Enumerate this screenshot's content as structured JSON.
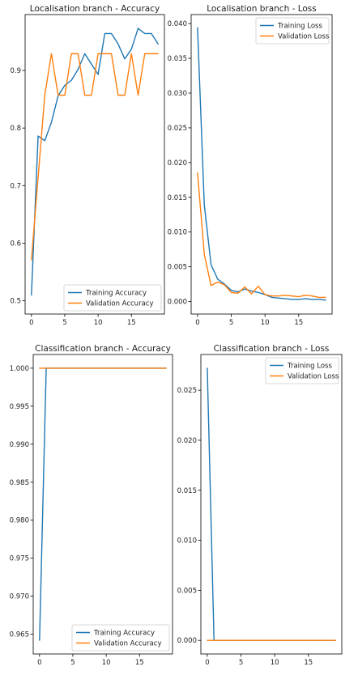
{
  "chart_data": [
    {
      "type": "line",
      "title": "Localisation branch - Accuracy",
      "xlabel": "",
      "ylabel": "",
      "xlim": [
        -0.95,
        19.95
      ],
      "ylim": [
        0.477,
        0.997
      ],
      "xticks": [
        0,
        5,
        10,
        15
      ],
      "yticks": [
        0.5,
        0.6,
        0.7,
        0.8,
        0.9
      ],
      "grid": false,
      "legend_position": "lower right",
      "x": [
        0,
        1,
        2,
        3,
        4,
        5,
        6,
        7,
        8,
        9,
        10,
        11,
        12,
        13,
        14,
        15,
        16,
        17,
        18,
        19
      ],
      "series": [
        {
          "name": "Training Accuracy",
          "color": "#1f77b4",
          "values": [
            0.51,
            0.786,
            0.778,
            0.81,
            0.856,
            0.874,
            0.883,
            0.902,
            0.929,
            0.911,
            0.893,
            0.964,
            0.964,
            0.946,
            0.92,
            0.937,
            0.973,
            0.964,
            0.964,
            0.946
          ]
        },
        {
          "name": "Validation Accuracy",
          "color": "#ff7f0e",
          "values": [
            0.571,
            0.714,
            0.857,
            0.929,
            0.857,
            0.857,
            0.929,
            0.929,
            0.857,
            0.857,
            0.929,
            0.929,
            0.929,
            0.857,
            0.857,
            0.929,
            0.857,
            0.929,
            0.929,
            0.929
          ]
        }
      ]
    },
    {
      "type": "line",
      "title": "Localisation branch - Loss",
      "xlabel": "",
      "ylabel": "",
      "xlim": [
        -0.95,
        19.95
      ],
      "ylim": [
        -0.0018,
        0.0413
      ],
      "xticks": [
        0,
        5,
        10,
        15
      ],
      "yticks": [
        0.0,
        0.005,
        0.01,
        0.015,
        0.02,
        0.025,
        0.03,
        0.035,
        0.04
      ],
      "ytick_labels": [
        "0.000",
        "0.005",
        "0.010",
        "0.015",
        "0.020",
        "0.025",
        "0.030",
        "0.035",
        "0.040"
      ],
      "grid": false,
      "legend_position": "upper right",
      "x": [
        0,
        1,
        2,
        3,
        4,
        5,
        6,
        7,
        8,
        9,
        10,
        11,
        12,
        13,
        14,
        15,
        16,
        17,
        18,
        19
      ],
      "series": [
        {
          "name": "Training Loss",
          "color": "#1f77b4",
          "values": [
            0.0394,
            0.0139,
            0.0053,
            0.0032,
            0.0025,
            0.0016,
            0.0014,
            0.0018,
            0.0015,
            0.0013,
            0.001,
            0.0006,
            0.0005,
            0.0004,
            0.0003,
            0.0003,
            0.0004,
            0.0003,
            0.0003,
            0.0002
          ]
        },
        {
          "name": "Validation Loss",
          "color": "#ff7f0e",
          "values": [
            0.0185,
            0.0068,
            0.0023,
            0.0028,
            0.0024,
            0.0013,
            0.0012,
            0.0021,
            0.0011,
            0.0022,
            0.001,
            0.0008,
            0.0008,
            0.0009,
            0.0008,
            0.0007,
            0.0009,
            0.0008,
            0.0006,
            0.0006
          ]
        }
      ]
    },
    {
      "type": "line",
      "title": "Classification branch - Accuracy",
      "xlabel": "",
      "ylabel": "",
      "xlim": [
        -0.95,
        19.95
      ],
      "ylim": [
        0.9624,
        1.0018
      ],
      "xticks": [
        0,
        5,
        10,
        15
      ],
      "yticks": [
        0.965,
        0.97,
        0.975,
        0.98,
        0.985,
        0.99,
        0.995,
        1.0
      ],
      "ytick_labels": [
        "0.965",
        "0.970",
        "0.975",
        "0.980",
        "0.985",
        "0.990",
        "0.995",
        "1.000"
      ],
      "grid": false,
      "legend_position": "lower right",
      "x": [
        0,
        1,
        2,
        3,
        4,
        5,
        6,
        7,
        8,
        9,
        10,
        11,
        12,
        13,
        14,
        15,
        16,
        17,
        18,
        19
      ],
      "series": [
        {
          "name": "Training Accuracy",
          "color": "#1f77b4",
          "values": [
            0.9642,
            1.0,
            1.0,
            1.0,
            1.0,
            1.0,
            1.0,
            1.0,
            1.0,
            1.0,
            1.0,
            1.0,
            1.0,
            1.0,
            1.0,
            1.0,
            1.0,
            1.0,
            1.0,
            1.0
          ]
        },
        {
          "name": "Validation Accuracy",
          "color": "#ff7f0e",
          "values": [
            1.0,
            1.0,
            1.0,
            1.0,
            1.0,
            1.0,
            1.0,
            1.0,
            1.0,
            1.0,
            1.0,
            1.0,
            1.0,
            1.0,
            1.0,
            1.0,
            1.0,
            1.0,
            1.0,
            1.0
          ]
        }
      ]
    },
    {
      "type": "line",
      "title": "Classification branch - Loss",
      "xlabel": "",
      "ylabel": "",
      "xlim": [
        -0.95,
        19.95
      ],
      "ylim": [
        -0.00136,
        0.02857
      ],
      "xticks": [
        0,
        5,
        10,
        15
      ],
      "yticks": [
        0.0,
        0.005,
        0.01,
        0.015,
        0.02,
        0.025
      ],
      "ytick_labels": [
        "0.000",
        "0.005",
        "0.010",
        "0.015",
        "0.020",
        "0.025"
      ],
      "grid": false,
      "legend_position": "upper right",
      "x": [
        0,
        1,
        2,
        3,
        4,
        5,
        6,
        7,
        8,
        9,
        10,
        11,
        12,
        13,
        14,
        15,
        16,
        17,
        18,
        19
      ],
      "series": [
        {
          "name": "Training Loss",
          "color": "#1f77b4",
          "values": [
            0.0272,
            0.0,
            0.0,
            0.0,
            0.0,
            0.0,
            0.0,
            0.0,
            0.0,
            0.0,
            0.0,
            0.0,
            0.0,
            0.0,
            0.0,
            0.0,
            0.0,
            0.0,
            0.0,
            0.0
          ]
        },
        {
          "name": "Validation Loss",
          "color": "#ff7f0e",
          "values": [
            0.0,
            0.0,
            0.0,
            0.0,
            0.0,
            0.0,
            0.0,
            0.0,
            0.0,
            0.0,
            0.0,
            0.0,
            0.0,
            0.0,
            0.0,
            0.0,
            0.0,
            0.0,
            0.0,
            0.0
          ]
        }
      ]
    }
  ]
}
